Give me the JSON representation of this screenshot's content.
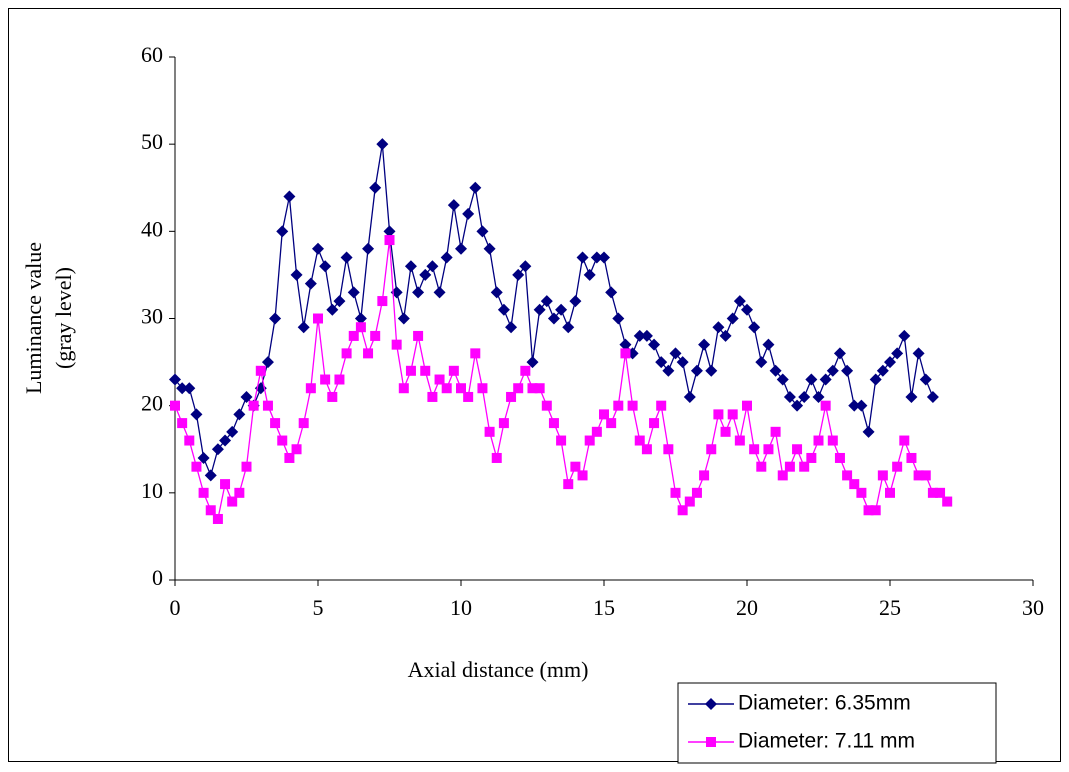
{
  "chart_data": {
    "type": "line",
    "xlabel": "Axial distance (mm)",
    "ylabel": [
      "Luminance value",
      "(gray level)"
    ],
    "xlim": [
      0,
      30
    ],
    "xticks": [
      0,
      5,
      10,
      15,
      20,
      25,
      30
    ],
    "ylim": [
      0,
      60
    ],
    "yticks": [
      0,
      10,
      20,
      30,
      40,
      50,
      60
    ],
    "grid": false,
    "legend": "bottom-right",
    "series": [
      {
        "name": "Diameter: 6.35mm",
        "color": "#000080",
        "marker": "diamond",
        "x": [
          0,
          0.25,
          0.5,
          0.75,
          1,
          1.25,
          1.5,
          1.75,
          2,
          2.25,
          2.5,
          2.75,
          3,
          3.25,
          3.5,
          3.75,
          4,
          4.25,
          4.5,
          4.75,
          5,
          5.25,
          5.5,
          5.75,
          6,
          6.25,
          6.5,
          6.75,
          7,
          7.25,
          7.5,
          7.75,
          8,
          8.25,
          8.5,
          8.75,
          9,
          9.25,
          9.5,
          9.75,
          10,
          10.25,
          10.5,
          10.75,
          11,
          11.25,
          11.5,
          11.75,
          12,
          12.25,
          12.5,
          12.75,
          13,
          13.25,
          13.5,
          13.75,
          14,
          14.25,
          14.5,
          14.75,
          15,
          15.25,
          15.5,
          15.75,
          16,
          16.25,
          16.5,
          16.75,
          17,
          17.25,
          17.5,
          17.75,
          18,
          18.25,
          18.5,
          18.75,
          19,
          19.25,
          19.5,
          19.75,
          20,
          20.25,
          20.5,
          20.75,
          21,
          21.25,
          21.5,
          21.75,
          22,
          22.25,
          22.5,
          22.75,
          23,
          23.25,
          23.5,
          23.75,
          24,
          24.25,
          24.5,
          24.75,
          25,
          25.25,
          25.5,
          25.75,
          26,
          26.25,
          26.5
        ],
        "values": [
          23,
          22,
          22,
          19,
          14,
          12,
          15,
          16,
          17,
          19,
          21,
          20,
          22,
          25,
          30,
          40,
          44,
          35,
          29,
          34,
          38,
          36,
          31,
          32,
          37,
          33,
          30,
          38,
          45,
          50,
          40,
          33,
          30,
          36,
          33,
          35,
          36,
          33,
          37,
          43,
          38,
          42,
          45,
          40,
          38,
          33,
          31,
          29,
          35,
          36,
          25,
          31,
          32,
          30,
          31,
          29,
          32,
          37,
          35,
          37,
          37,
          33,
          30,
          27,
          26,
          28,
          28,
          27,
          25,
          24,
          26,
          25,
          21,
          24,
          27,
          24,
          29,
          28,
          30,
          32,
          31,
          29,
          25,
          27,
          24,
          23,
          21,
          20,
          21,
          23,
          21,
          23,
          24,
          26,
          24,
          20,
          20,
          17,
          23,
          24,
          25,
          26,
          28,
          21,
          26,
          23,
          21
        ]
      },
      {
        "name": "Diameter: 7.11 mm",
        "color": "#ff00ff",
        "marker": "square",
        "x": [
          0,
          0.25,
          0.5,
          0.75,
          1,
          1.25,
          1.5,
          1.75,
          2,
          2.25,
          2.5,
          2.75,
          3,
          3.25,
          3.5,
          3.75,
          4,
          4.25,
          4.5,
          4.75,
          5,
          5.25,
          5.5,
          5.75,
          6,
          6.25,
          6.5,
          6.75,
          7,
          7.25,
          7.5,
          7.75,
          8,
          8.25,
          8.5,
          8.75,
          9,
          9.25,
          9.5,
          9.75,
          10,
          10.25,
          10.5,
          10.75,
          11,
          11.25,
          11.5,
          11.75,
          12,
          12.25,
          12.5,
          12.75,
          13,
          13.25,
          13.5,
          13.75,
          14,
          14.25,
          14.5,
          14.75,
          15,
          15.25,
          15.5,
          15.75,
          16,
          16.25,
          16.5,
          16.75,
          17,
          17.25,
          17.5,
          17.75,
          18,
          18.25,
          18.5,
          18.75,
          19,
          19.25,
          19.5,
          19.75,
          20,
          20.25,
          20.5,
          20.75,
          21,
          21.25,
          21.5,
          21.75,
          22,
          22.25,
          22.5,
          22.75,
          23,
          23.25,
          23.5,
          23.75,
          24,
          24.25,
          24.5,
          24.75,
          25,
          25.25,
          25.5,
          25.75,
          26,
          26.25,
          26.5,
          26.75,
          27
        ],
        "values": [
          20,
          18,
          16,
          13,
          10,
          8,
          7,
          11,
          9,
          10,
          13,
          20,
          24,
          20,
          18,
          16,
          14,
          15,
          18,
          22,
          30,
          23,
          21,
          23,
          26,
          28,
          29,
          26,
          28,
          32,
          39,
          27,
          22,
          24,
          28,
          24,
          21,
          23,
          22,
          24,
          22,
          21,
          26,
          22,
          17,
          14,
          18,
          21,
          22,
          24,
          22,
          22,
          20,
          18,
          16,
          11,
          13,
          12,
          16,
          17,
          19,
          18,
          20,
          26,
          20,
          16,
          15,
          18,
          20,
          15,
          10,
          8,
          9,
          10,
          12,
          15,
          19,
          17,
          19,
          16,
          20,
          15,
          13,
          15,
          17,
          12,
          13,
          15,
          13,
          14,
          16,
          20,
          16,
          14,
          12,
          11,
          10,
          8,
          8,
          12,
          10,
          13,
          16,
          14,
          12,
          12,
          10,
          10,
          9
        ]
      }
    ]
  }
}
